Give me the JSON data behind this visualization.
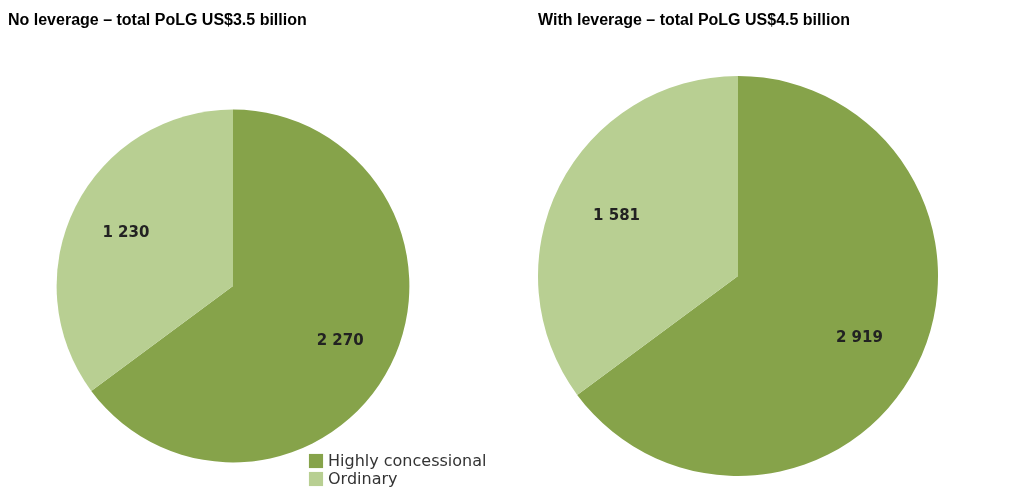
{
  "chart_data": [
    {
      "type": "pie",
      "title": "No leverage – total PoLG US$3.5 billion",
      "categories": [
        "Highly concessional",
        "Ordinary"
      ],
      "values": [
        2270,
        1230
      ],
      "value_labels": [
        "2 270",
        "1 230"
      ],
      "colors": [
        "#86a34a",
        "#b8cf92"
      ],
      "legend": "bottom right"
    },
    {
      "type": "pie",
      "title": "With leverage – total PoLG US$4.5 billion",
      "categories": [
        null,
        null
      ],
      "values": [
        2919,
        1581
      ],
      "value_labels": [
        "2 919",
        "1 581"
      ],
      "colors": [
        "#86a34a",
        "#b8cf92"
      ]
    }
  ]
}
